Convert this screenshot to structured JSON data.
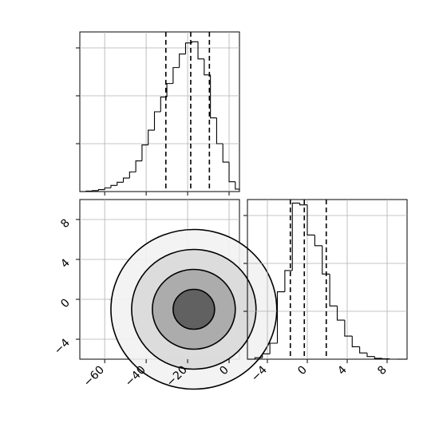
{
  "chart_data": [
    {
      "id": "hist_x",
      "type": "histogram",
      "title": "",
      "xlabel": "",
      "ylabel": "",
      "xlim": [
        -72,
        5
      ],
      "ylim": [
        0,
        650
      ],
      "grid": true,
      "bin_edges": [
        -72,
        -69,
        -66,
        -63,
        -60,
        -57,
        -54,
        -51,
        -48,
        -45,
        -42,
        -39,
        -36,
        -33,
        -30,
        -27,
        -24,
        -21,
        -18,
        -15,
        -12,
        -9,
        -6,
        -3,
        0,
        3,
        5
      ],
      "counts": [
        0,
        2,
        4,
        8,
        15,
        25,
        38,
        55,
        80,
        125,
        190,
        250,
        325,
        385,
        440,
        505,
        560,
        605,
        610,
        540,
        475,
        300,
        195,
        120,
        40,
        10
      ],
      "quantile_lines": [
        -30.5,
        -18.5,
        -9.5
      ],
      "xticks": [
        -60,
        -40,
        -20,
        0
      ]
    },
    {
      "id": "hist_y",
      "type": "histogram",
      "title": "",
      "xlabel": "",
      "ylabel": "",
      "xlim": [
        -6,
        10
      ],
      "ylim": [
        0,
        900
      ],
      "grid": true,
      "bin_edges": [
        -6,
        -5.25,
        -4.5,
        -3.75,
        -3,
        -2.25,
        -1.5,
        -0.75,
        0,
        0.75,
        1.5,
        2.25,
        3,
        3.75,
        4.5,
        5.25,
        6,
        6.75,
        7.5,
        8.25,
        9,
        10
      ],
      "counts": [
        0,
        8,
        30,
        90,
        380,
        500,
        880,
        870,
        700,
        640,
        480,
        300,
        220,
        130,
        70,
        35,
        15,
        5,
        2,
        0,
        0
      ],
      "quantile_lines": [
        -1.7,
        -0.3,
        1.9
      ],
      "xticks": [
        -4,
        0,
        4,
        8
      ],
      "xtick_labels": [
        "−4",
        "0",
        "4",
        "8"
      ]
    },
    {
      "id": "scatter_xy",
      "type": "scatter",
      "title": "",
      "xlabel": "",
      "ylabel": "",
      "xlim": [
        -72,
        5
      ],
      "ylim": [
        -6,
        10
      ],
      "grid": true,
      "density_center": [
        -17,
        -1
      ],
      "density_sigma": [
        10,
        2
      ],
      "sample_count": 1500,
      "contour_levels": [
        {
          "level": 0.5,
          "radius": [
            10,
            2
          ]
        },
        {
          "level": 1.0,
          "radius": [
            20,
            4
          ]
        },
        {
          "level": 1.5,
          "radius": [
            30,
            6
          ]
        },
        {
          "level": 2.0,
          "radius": [
            40,
            8
          ]
        }
      ],
      "xticks": [
        -60,
        -40,
        -20,
        0
      ],
      "xtick_labels": [
        "−60",
        "−40",
        "−20",
        "0"
      ],
      "yticks": [
        -4,
        0,
        4,
        8
      ],
      "ytick_labels": [
        "−4",
        "0",
        "4",
        "8"
      ]
    }
  ]
}
